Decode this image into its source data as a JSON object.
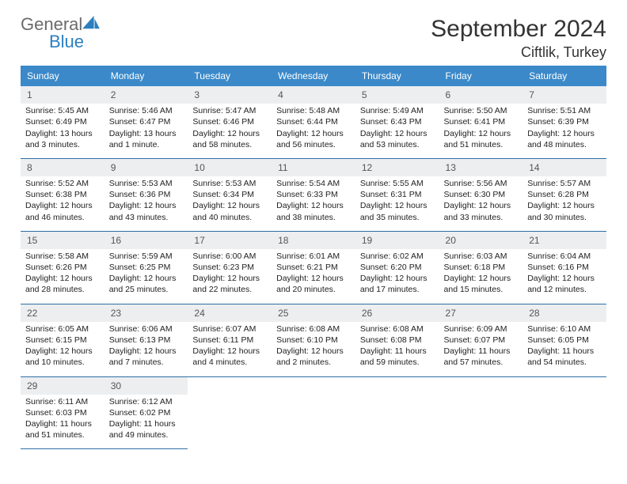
{
  "brand": {
    "general": "General",
    "blue": "Blue"
  },
  "title": "September 2024",
  "location": "Ciftlik, Turkey",
  "colors": {
    "header_bg": "#3b89c9",
    "header_text": "#ffffff",
    "daynum_bg": "#eceef0",
    "row_divider": "#2e6fa6",
    "body_text": "#222222",
    "brand_gray": "#6b6b6b",
    "brand_blue": "#2b7fbf"
  },
  "weekdays": [
    "Sunday",
    "Monday",
    "Tuesday",
    "Wednesday",
    "Thursday",
    "Friday",
    "Saturday"
  ],
  "weeks": [
    {
      "days": [
        {
          "n": "1",
          "sr": "Sunrise: 5:45 AM",
          "ss": "Sunset: 6:49 PM",
          "d1": "Daylight: 13 hours",
          "d2": "and 3 minutes."
        },
        {
          "n": "2",
          "sr": "Sunrise: 5:46 AM",
          "ss": "Sunset: 6:47 PM",
          "d1": "Daylight: 13 hours",
          "d2": "and 1 minute."
        },
        {
          "n": "3",
          "sr": "Sunrise: 5:47 AM",
          "ss": "Sunset: 6:46 PM",
          "d1": "Daylight: 12 hours",
          "d2": "and 58 minutes."
        },
        {
          "n": "4",
          "sr": "Sunrise: 5:48 AM",
          "ss": "Sunset: 6:44 PM",
          "d1": "Daylight: 12 hours",
          "d2": "and 56 minutes."
        },
        {
          "n": "5",
          "sr": "Sunrise: 5:49 AM",
          "ss": "Sunset: 6:43 PM",
          "d1": "Daylight: 12 hours",
          "d2": "and 53 minutes."
        },
        {
          "n": "6",
          "sr": "Sunrise: 5:50 AM",
          "ss": "Sunset: 6:41 PM",
          "d1": "Daylight: 12 hours",
          "d2": "and 51 minutes."
        },
        {
          "n": "7",
          "sr": "Sunrise: 5:51 AM",
          "ss": "Sunset: 6:39 PM",
          "d1": "Daylight: 12 hours",
          "d2": "and 48 minutes."
        }
      ]
    },
    {
      "days": [
        {
          "n": "8",
          "sr": "Sunrise: 5:52 AM",
          "ss": "Sunset: 6:38 PM",
          "d1": "Daylight: 12 hours",
          "d2": "and 46 minutes."
        },
        {
          "n": "9",
          "sr": "Sunrise: 5:53 AM",
          "ss": "Sunset: 6:36 PM",
          "d1": "Daylight: 12 hours",
          "d2": "and 43 minutes."
        },
        {
          "n": "10",
          "sr": "Sunrise: 5:53 AM",
          "ss": "Sunset: 6:34 PM",
          "d1": "Daylight: 12 hours",
          "d2": "and 40 minutes."
        },
        {
          "n": "11",
          "sr": "Sunrise: 5:54 AM",
          "ss": "Sunset: 6:33 PM",
          "d1": "Daylight: 12 hours",
          "d2": "and 38 minutes."
        },
        {
          "n": "12",
          "sr": "Sunrise: 5:55 AM",
          "ss": "Sunset: 6:31 PM",
          "d1": "Daylight: 12 hours",
          "d2": "and 35 minutes."
        },
        {
          "n": "13",
          "sr": "Sunrise: 5:56 AM",
          "ss": "Sunset: 6:30 PM",
          "d1": "Daylight: 12 hours",
          "d2": "and 33 minutes."
        },
        {
          "n": "14",
          "sr": "Sunrise: 5:57 AM",
          "ss": "Sunset: 6:28 PM",
          "d1": "Daylight: 12 hours",
          "d2": "and 30 minutes."
        }
      ]
    },
    {
      "days": [
        {
          "n": "15",
          "sr": "Sunrise: 5:58 AM",
          "ss": "Sunset: 6:26 PM",
          "d1": "Daylight: 12 hours",
          "d2": "and 28 minutes."
        },
        {
          "n": "16",
          "sr": "Sunrise: 5:59 AM",
          "ss": "Sunset: 6:25 PM",
          "d1": "Daylight: 12 hours",
          "d2": "and 25 minutes."
        },
        {
          "n": "17",
          "sr": "Sunrise: 6:00 AM",
          "ss": "Sunset: 6:23 PM",
          "d1": "Daylight: 12 hours",
          "d2": "and 22 minutes."
        },
        {
          "n": "18",
          "sr": "Sunrise: 6:01 AM",
          "ss": "Sunset: 6:21 PM",
          "d1": "Daylight: 12 hours",
          "d2": "and 20 minutes."
        },
        {
          "n": "19",
          "sr": "Sunrise: 6:02 AM",
          "ss": "Sunset: 6:20 PM",
          "d1": "Daylight: 12 hours",
          "d2": "and 17 minutes."
        },
        {
          "n": "20",
          "sr": "Sunrise: 6:03 AM",
          "ss": "Sunset: 6:18 PM",
          "d1": "Daylight: 12 hours",
          "d2": "and 15 minutes."
        },
        {
          "n": "21",
          "sr": "Sunrise: 6:04 AM",
          "ss": "Sunset: 6:16 PM",
          "d1": "Daylight: 12 hours",
          "d2": "and 12 minutes."
        }
      ]
    },
    {
      "days": [
        {
          "n": "22",
          "sr": "Sunrise: 6:05 AM",
          "ss": "Sunset: 6:15 PM",
          "d1": "Daylight: 12 hours",
          "d2": "and 10 minutes."
        },
        {
          "n": "23",
          "sr": "Sunrise: 6:06 AM",
          "ss": "Sunset: 6:13 PM",
          "d1": "Daylight: 12 hours",
          "d2": "and 7 minutes."
        },
        {
          "n": "24",
          "sr": "Sunrise: 6:07 AM",
          "ss": "Sunset: 6:11 PM",
          "d1": "Daylight: 12 hours",
          "d2": "and 4 minutes."
        },
        {
          "n": "25",
          "sr": "Sunrise: 6:08 AM",
          "ss": "Sunset: 6:10 PM",
          "d1": "Daylight: 12 hours",
          "d2": "and 2 minutes."
        },
        {
          "n": "26",
          "sr": "Sunrise: 6:08 AM",
          "ss": "Sunset: 6:08 PM",
          "d1": "Daylight: 11 hours",
          "d2": "and 59 minutes."
        },
        {
          "n": "27",
          "sr": "Sunrise: 6:09 AM",
          "ss": "Sunset: 6:07 PM",
          "d1": "Daylight: 11 hours",
          "d2": "and 57 minutes."
        },
        {
          "n": "28",
          "sr": "Sunrise: 6:10 AM",
          "ss": "Sunset: 6:05 PM",
          "d1": "Daylight: 11 hours",
          "d2": "and 54 minutes."
        }
      ]
    },
    {
      "days": [
        {
          "n": "29",
          "sr": "Sunrise: 6:11 AM",
          "ss": "Sunset: 6:03 PM",
          "d1": "Daylight: 11 hours",
          "d2": "and 51 minutes."
        },
        {
          "n": "30",
          "sr": "Sunrise: 6:12 AM",
          "ss": "Sunset: 6:02 PM",
          "d1": "Daylight: 11 hours",
          "d2": "and 49 minutes."
        },
        null,
        null,
        null,
        null,
        null
      ]
    }
  ]
}
